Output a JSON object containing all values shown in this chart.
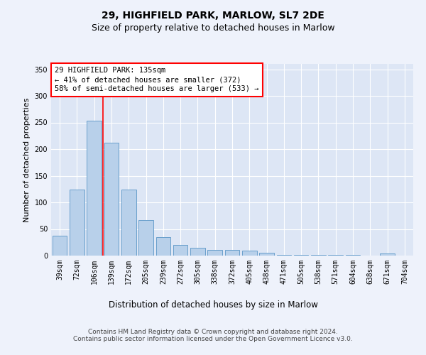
{
  "title1": "29, HIGHFIELD PARK, MARLOW, SL7 2DE",
  "title2": "Size of property relative to detached houses in Marlow",
  "xlabel": "Distribution of detached houses by size in Marlow",
  "ylabel": "Number of detached properties",
  "categories": [
    "39sqm",
    "72sqm",
    "106sqm",
    "139sqm",
    "172sqm",
    "205sqm",
    "239sqm",
    "272sqm",
    "305sqm",
    "338sqm",
    "372sqm",
    "405sqm",
    "438sqm",
    "471sqm",
    "505sqm",
    "538sqm",
    "571sqm",
    "604sqm",
    "638sqm",
    "671sqm",
    "704sqm"
  ],
  "values": [
    37,
    124,
    253,
    212,
    124,
    67,
    35,
    20,
    15,
    11,
    11,
    10,
    5,
    2,
    1,
    1,
    1,
    1,
    0,
    4,
    0
  ],
  "bar_color": "#b8d0ea",
  "bar_edge_color": "#6aa0cc",
  "annotation_text": "29 HIGHFIELD PARK: 135sqm\n← 41% of detached houses are smaller (372)\n58% of semi-detached houses are larger (533) →",
  "annotation_box_color": "white",
  "annotation_box_edge": "red",
  "vline_color": "red",
  "ylim": [
    0,
    360
  ],
  "yticks": [
    0,
    50,
    100,
    150,
    200,
    250,
    300,
    350
  ],
  "bg_color": "#eef2fb",
  "plot_bg_color": "#dde6f5",
  "footer": "Contains HM Land Registry data © Crown copyright and database right 2024.\nContains public sector information licensed under the Open Government Licence v3.0.",
  "title1_fontsize": 10,
  "title2_fontsize": 9,
  "xlabel_fontsize": 8.5,
  "ylabel_fontsize": 8,
  "tick_fontsize": 7,
  "annotation_fontsize": 7.5,
  "footer_fontsize": 6.5
}
